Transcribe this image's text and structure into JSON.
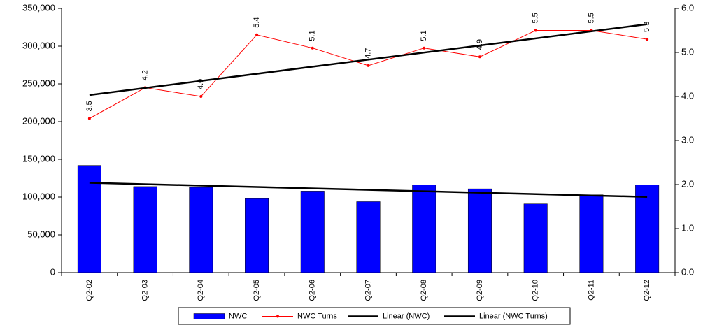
{
  "chart_data": {
    "type": "bar",
    "categories": [
      "Q2-02",
      "Q2-03",
      "Q2-04",
      "Q2-05",
      "Q2-06",
      "Q2-07",
      "Q2-08",
      "Q2-09",
      "Q2-10",
      "Q2-11",
      "Q2-12"
    ],
    "series": [
      {
        "name": "NWC",
        "type": "bar",
        "color": "#0000ff",
        "values": [
          142000,
          114000,
          113000,
          98000,
          108000,
          94000,
          116000,
          111000,
          91000,
          103000,
          116000
        ],
        "trendline": {
          "name": "Linear (NWC)",
          "color": "#000000"
        }
      },
      {
        "name": "NWC Turns",
        "type": "line",
        "axis": "y2",
        "color": "#ff0000",
        "data_labels": true,
        "values": [
          3.5,
          4.2,
          4.0,
          5.4,
          5.1,
          4.7,
          5.1,
          4.9,
          5.5,
          5.5,
          5.3
        ],
        "value_labels": [
          "3.5",
          "4.2",
          "4.0",
          "5.4",
          "5.1",
          "4.7",
          "5.1",
          "4.9",
          "5.5",
          "5.5",
          "5.3"
        ],
        "trendline": {
          "name": "Linear (NWC Turns)",
          "color": "#000000"
        }
      }
    ],
    "ylim": [
      0,
      350000
    ],
    "yticks": [
      0,
      {
        "value": 50000,
        "label": "50,000"
      },
      {
        "value": 100000,
        "label": "100,000"
      },
      {
        "value": 150000,
        "label": "150,000"
      },
      {
        "value": 200000,
        "label": "200,000"
      },
      {
        "value": 250000,
        "label": "250,000"
      },
      {
        "value": 300000,
        "label": "300,000"
      },
      {
        "value": 350000,
        "label": "350,000"
      }
    ],
    "y2lim": [
      0,
      6
    ],
    "y2ticks": [
      {
        "value": 0,
        "label": "0.0"
      },
      {
        "value": 1,
        "label": "1.0"
      },
      {
        "value": 2,
        "label": "2.0"
      },
      {
        "value": 3,
        "label": "3.0"
      },
      {
        "value": 4,
        "label": "4.0"
      },
      {
        "value": 5,
        "label": "5.0"
      },
      {
        "value": 6,
        "label": "6.0"
      }
    ],
    "grid": false,
    "legend": "bottom"
  }
}
